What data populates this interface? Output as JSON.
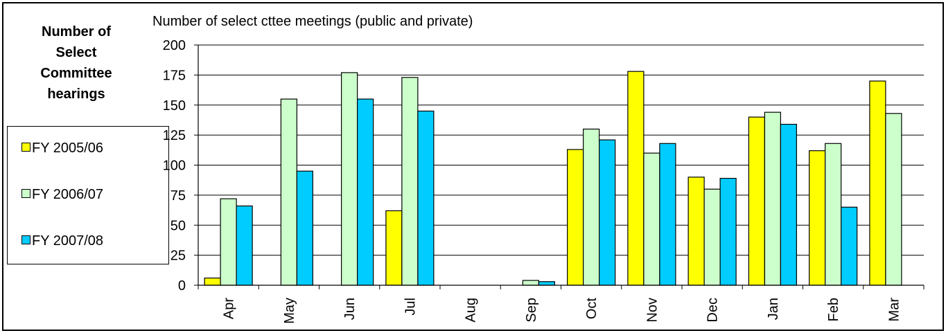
{
  "side_title": "Number of\nSelect\nCommittee\nhearings",
  "chart_data": {
    "type": "bar",
    "title": "Number of select cttee meetings (public and private)",
    "xlabel": "",
    "ylabel": "",
    "ylim": [
      0,
      200
    ],
    "yticks": [
      "0",
      "25",
      "50",
      "75",
      "100",
      "125",
      "150",
      "175",
      "200"
    ],
    "categories": [
      "Apr",
      "May",
      "Jun",
      "Jul",
      "Aug",
      "Sep",
      "Oct",
      "Nov",
      "Dec",
      "Jan",
      "Feb",
      "Mar"
    ],
    "series": [
      {
        "name": "FY 2005/06",
        "color": "#ffff00",
        "values": [
          6,
          0,
          0,
          62,
          0,
          0,
          113,
          178,
          90,
          140,
          112,
          170
        ]
      },
      {
        "name": "FY 2006/07",
        "color": "#ccffcc",
        "values": [
          72,
          155,
          177,
          173,
          0,
          4,
          130,
          110,
          80,
          144,
          118,
          143
        ]
      },
      {
        "name": "FY 2007/08",
        "color": "#00ccff",
        "values": [
          66,
          95,
          155,
          145,
          0,
          3,
          121,
          118,
          89,
          134,
          65,
          0
        ]
      }
    ],
    "grid": true,
    "legend_position": "left"
  }
}
